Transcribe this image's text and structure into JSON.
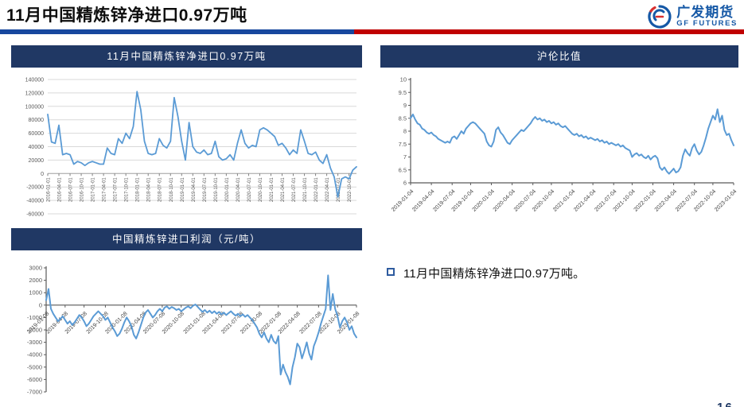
{
  "page": {
    "title": "11月中国精炼锌净进口0.97万吨",
    "page_number": "16"
  },
  "logo": {
    "name_cn": "广发期货",
    "name_en": "GF FUTURES"
  },
  "bullet": {
    "text": "11月中国精炼锌净进口0.97万吨。"
  },
  "colors": {
    "header_bar": "#203864",
    "line": "#5B9BD5",
    "divider_blue": "#17479E",
    "divider_red": "#C00000",
    "logo_blue": "#1558A6",
    "logo_red": "#D93030",
    "bullet_square": "#2E5B9F",
    "grid": "#D9D9D9",
    "axis_dark": "#595959",
    "tick_label": "#404040"
  },
  "chart_data": [
    {
      "type": "line",
      "title": "11月中国精炼锌净进口0.97万吨",
      "ylabel": "",
      "xlabel": "",
      "ylim": [
        -60000,
        140000
      ],
      "ytick_step": 20000,
      "gridlines": true,
      "yaxis_line": false,
      "labels_at_zero": true,
      "x_label_style": "vertical",
      "x_label_every": 3,
      "legend": "none",
      "x_labels": [
        "2016-01-01",
        "2016-04-01",
        "2016-07-01",
        "2016-10-01",
        "2017-01-01",
        "2017-04-01",
        "2017-07-01",
        "2017-10-01",
        "2018-01-01",
        "2018-04-01",
        "2018-07-01",
        "2018-10-01",
        "2019-01-01",
        "2019-04-01",
        "2019-07-01",
        "2019-10-01",
        "2020-01-01",
        "2020-04-01",
        "2020-07-01",
        "2020-10-01",
        "2021-01-01",
        "2021-04-01",
        "2021-07-01",
        "2021-10-01",
        "2022-01-01",
        "2022-04-01",
        "2022-07-01",
        "2022-10-01"
      ],
      "values": [
        88000,
        47000,
        45000,
        72000,
        28000,
        30000,
        28000,
        14000,
        18000,
        16000,
        12000,
        16000,
        18000,
        16000,
        14000,
        14000,
        38000,
        30000,
        28000,
        52000,
        45000,
        60000,
        52000,
        70000,
        122000,
        95000,
        48000,
        30000,
        28000,
        30000,
        52000,
        42000,
        38000,
        48000,
        113000,
        85000,
        48000,
        20000,
        76000,
        40000,
        32000,
        30000,
        35000,
        28000,
        30000,
        48000,
        25000,
        20000,
        22000,
        28000,
        20000,
        45000,
        65000,
        45000,
        38000,
        42000,
        40000,
        65000,
        68000,
        65000,
        60000,
        55000,
        42000,
        45000,
        38000,
        28000,
        35000,
        30000,
        65000,
        48000,
        30000,
        28000,
        32000,
        20000,
        15000,
        28000,
        8000,
        -5000,
        -35000,
        -8000,
        -5000,
        -8000,
        5000,
        10000
      ]
    },
    {
      "type": "line",
      "title": "沪伦比值",
      "ylabel": "",
      "xlabel": "",
      "ylim": [
        6,
        10
      ],
      "ytick_step": 0.5,
      "gridlines": false,
      "yaxis_line": true,
      "labels_at_zero": false,
      "x_label_style": "angled",
      "legend": "none",
      "x_labels": [
        "2019-01-04",
        "2019-04-04",
        "2019-07-04",
        "2019-10-04",
        "2020-01-04",
        "2020-04-04",
        "2020-07-04",
        "2020-10-04",
        "2021-01-04",
        "2021-04-04",
        "2021-07-04",
        "2021-10-04",
        "2022-01-04",
        "2022-04-04",
        "2022-07-04",
        "2022-10-04",
        "2023-01-04"
      ],
      "values": [
        8.5,
        8.65,
        8.45,
        8.3,
        8.25,
        8.1,
        8.05,
        7.95,
        7.9,
        7.95,
        7.85,
        7.8,
        7.7,
        7.65,
        7.6,
        7.55,
        7.6,
        7.55,
        7.75,
        7.8,
        7.7,
        7.85,
        8.0,
        7.9,
        8.1,
        8.2,
        8.3,
        8.35,
        8.3,
        8.2,
        8.1,
        8.0,
        7.9,
        7.6,
        7.45,
        7.4,
        7.6,
        8.05,
        8.15,
        7.95,
        7.85,
        7.7,
        7.55,
        7.5,
        7.65,
        7.75,
        7.85,
        7.95,
        8.05,
        8.0,
        8.1,
        8.2,
        8.3,
        8.45,
        8.55,
        8.45,
        8.5,
        8.4,
        8.45,
        8.35,
        8.4,
        8.3,
        8.35,
        8.25,
        8.3,
        8.2,
        8.15,
        8.2,
        8.1,
        8.0,
        7.9,
        7.85,
        7.9,
        7.8,
        7.85,
        7.75,
        7.8,
        7.7,
        7.75,
        7.7,
        7.65,
        7.7,
        7.6,
        7.65,
        7.55,
        7.6,
        7.5,
        7.55,
        7.5,
        7.45,
        7.5,
        7.4,
        7.45,
        7.35,
        7.3,
        7.25,
        7.0,
        7.1,
        7.15,
        7.05,
        7.1,
        7.0,
        6.95,
        7.05,
        6.9,
        7.0,
        7.05,
        6.95,
        6.6,
        6.5,
        6.6,
        6.45,
        6.35,
        6.45,
        6.55,
        6.4,
        6.45,
        6.6,
        7.05,
        7.3,
        7.15,
        7.05,
        7.35,
        7.5,
        7.25,
        7.1,
        7.2,
        7.45,
        7.75,
        8.1,
        8.35,
        8.6,
        8.45,
        8.85,
        8.35,
        8.6,
        8.05,
        7.85,
        7.9,
        7.65,
        7.45
      ]
    },
    {
      "type": "line",
      "title": "中国精炼锌进口利润（元/吨）",
      "ylabel": "",
      "xlabel": "",
      "ylim": [
        -7000,
        3000
      ],
      "ytick_step": 1000,
      "gridlines": false,
      "yaxis_line": true,
      "labels_at_zero": true,
      "x_label_style": "angled",
      "legend": "none",
      "x_labels": [
        "2019-01-08",
        "2019-04-08",
        "2019-07-08",
        "2019-10-08",
        "2020-01-08",
        "2020-04-08",
        "2020-07-08",
        "2020-10-08",
        "2021-01-08",
        "2021-04-08",
        "2021-07-08",
        "2021-10-08",
        "2022-01-08",
        "2022-04-08",
        "2022-07-08",
        "2022-10-08",
        "2023-01-08"
      ],
      "values": [
        400,
        1300,
        -300,
        -700,
        -1000,
        -1300,
        -1100,
        -900,
        -1200,
        -1500,
        -1300,
        -1600,
        -1400,
        -1100,
        -800,
        -1000,
        -1300,
        -1700,
        -1500,
        -1200,
        -900,
        -700,
        -500,
        -700,
        -900,
        -1200,
        -1000,
        -1400,
        -1800,
        -2100,
        -2500,
        -2300,
        -1900,
        -1400,
        -1000,
        -1300,
        -1700,
        -2400,
        -2700,
        -2200,
        -1600,
        -1000,
        -600,
        -400,
        -700,
        -1000,
        -800,
        -500,
        -300,
        -500,
        -200,
        -100,
        -300,
        -150,
        -250,
        -400,
        -300,
        -500,
        -350,
        -200,
        -100,
        -250,
        -50,
        50,
        -150,
        -350,
        -550,
        -400,
        -600,
        -450,
        -650,
        -500,
        -700,
        -550,
        -750,
        -600,
        -800,
        -650,
        -500,
        -700,
        -850,
        -700,
        -900,
        -750,
        -950,
        -800,
        -1000,
        -1200,
        -1500,
        -1800,
        -2300,
        -2600,
        -2200,
        -2700,
        -3000,
        -2400,
        -2900,
        -3100,
        -2500,
        -5600,
        -4800,
        -5400,
        -5800,
        -6400,
        -5000,
        -4200,
        -3100,
        -3400,
        -4300,
        -3700,
        -3000,
        -3900,
        -4400,
        -3300,
        -2800,
        -2200,
        -1500,
        -900,
        -300,
        2400,
        -400,
        900,
        -300,
        -900,
        -1800,
        -1300,
        -1000,
        -1400,
        -2000,
        -1700,
        -2300,
        -2600
      ]
    }
  ]
}
